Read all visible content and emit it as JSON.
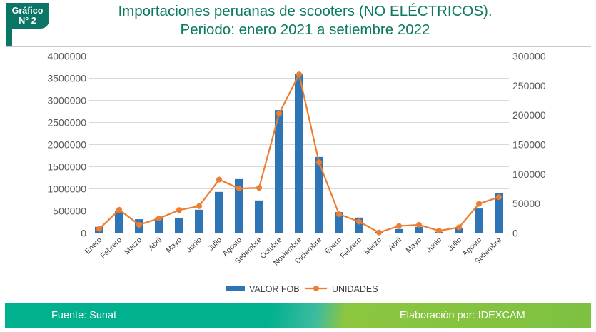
{
  "badge": {
    "line1": "Gráfico",
    "line2": "N° 2"
  },
  "title": {
    "line1": "Importaciones peruanas de scooters (NO ELÉCTRICOS).",
    "line2": "Periodo: enero 2021 a setiembre 2022"
  },
  "footer": {
    "source": "Fuente: Sunat",
    "credit": "Elaboración por:  IDEXCAM"
  },
  "colors": {
    "bar": "#2e75b6",
    "line": "#ed7d31",
    "brand": "#0b7566"
  },
  "chart_data": {
    "type": "bar+line",
    "categories": [
      "Enero",
      "Febrero",
      "Marzo",
      "Abril",
      "Mayo",
      "Junio",
      "Julio",
      "Agosto",
      "Setiembre",
      "Octubre",
      "Noviembre",
      "Diciembre",
      "Enero",
      "Febrero",
      "Marzo",
      "Abril",
      "Mayo",
      "Junio",
      "Julio",
      "Agosto",
      "Setiembre"
    ],
    "series": [
      {
        "name": "VALOR FOB",
        "type": "bar",
        "axis": "left",
        "values": [
          140000,
          495000,
          313000,
          350000,
          333000,
          527000,
          930000,
          1220000,
          737000,
          2780000,
          3600000,
          1720000,
          474000,
          350000,
          27000,
          92000,
          140000,
          30000,
          120000,
          555000,
          898000
        ]
      },
      {
        "name": "UNIDADES",
        "type": "line",
        "axis": "right",
        "values": [
          7000,
          39500,
          14000,
          25000,
          39000,
          45600,
          90700,
          75500,
          76700,
          202500,
          269000,
          119800,
          32000,
          19400,
          1000,
          12000,
          14000,
          4000,
          9700,
          49600,
          61000
        ]
      }
    ],
    "yleft": {
      "ticks": [
        "0",
        "500000",
        "1000000",
        "1500000",
        "2000000",
        "2500000",
        "3000000",
        "3500000",
        "4000000"
      ],
      "lim": [
        0,
        4000000
      ]
    },
    "yright": {
      "ticks": [
        "0",
        "50000",
        "100000",
        "150000",
        "200000",
        "250000",
        "300000"
      ],
      "lim": [
        0,
        300000
      ]
    },
    "legend": "bottom",
    "grid": true
  }
}
